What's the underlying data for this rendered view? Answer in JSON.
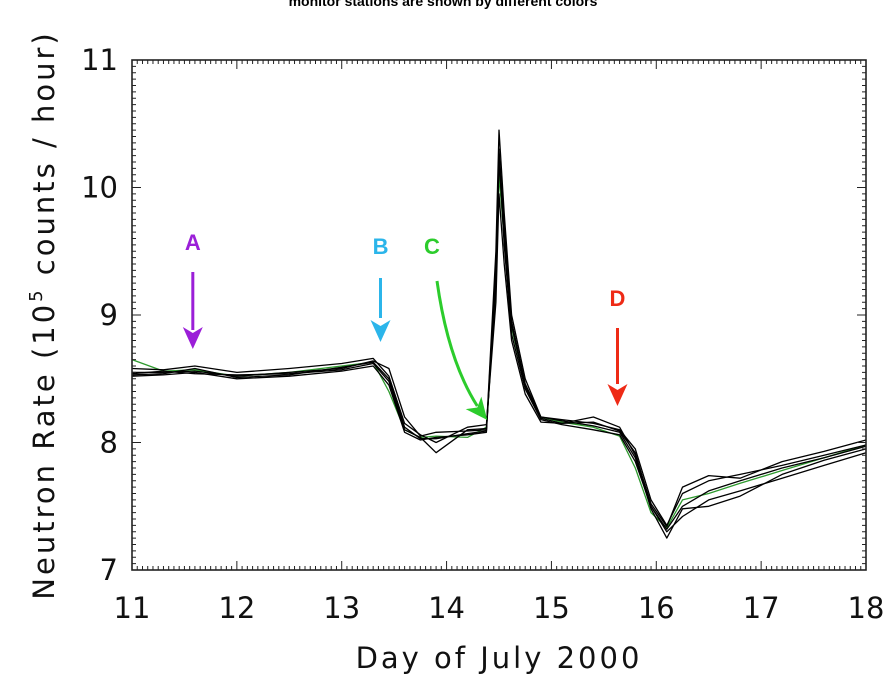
{
  "title": "monitor stations are shown by different colors",
  "chart_data": {
    "type": "line",
    "xlabel": "Day of July 2000",
    "ylabel_prefix": "Neutron Rate (10",
    "ylabel_exp": "5",
    "ylabel_suffix": " counts / hour)",
    "xlim": [
      11,
      18
    ],
    "ylim": [
      7,
      11
    ],
    "xticks": [
      11,
      12,
      13,
      14,
      15,
      16,
      17,
      18
    ],
    "yticks": [
      7,
      8,
      9,
      10,
      11
    ],
    "xtick_labels": [
      "11",
      "12",
      "13",
      "14",
      "15",
      "16",
      "17",
      "18"
    ],
    "ytick_labels": [
      "7",
      "8",
      "9",
      "10",
      "11"
    ],
    "annotations": [
      {
        "label": "A",
        "color": "#9b1fd8",
        "x": 11.58,
        "y_tail": 8.8,
        "y_head": 8.76
      },
      {
        "label": "B",
        "color": "#2bb5ea",
        "x": 13.37,
        "y_tail": 8.84,
        "y_head": 8.8
      },
      {
        "label": "C",
        "color": "#2ccc2c",
        "x": 14.35,
        "y_tail": 8.16,
        "y_head": 8.2
      },
      {
        "label": "D",
        "color": "#ee2a16",
        "x": 15.63,
        "y_tail": 8.3,
        "y_head": 8.3
      }
    ],
    "series": [
      {
        "color": "#2e9a2e",
        "x": [
          11,
          11.3,
          11.6,
          12,
          12.5,
          13,
          13.3,
          13.45,
          13.6,
          13.75,
          13.9,
          14.2,
          14.38,
          14.47,
          14.5,
          14.55,
          14.62,
          14.75,
          14.9,
          15.1,
          15.4,
          15.65,
          15.8,
          15.95,
          16.1,
          16.25,
          16.5,
          16.8,
          17.2,
          17.6,
          18
        ],
        "y": [
          8.65,
          8.56,
          8.57,
          8.52,
          8.55,
          8.6,
          8.63,
          8.4,
          8.1,
          8.04,
          8.05,
          8.04,
          8.12,
          9.2,
          10.1,
          9.6,
          8.9,
          8.45,
          8.2,
          8.16,
          8.12,
          8.05,
          7.8,
          7.45,
          7.33,
          7.55,
          7.6,
          7.68,
          7.78,
          7.88,
          7.98
        ]
      },
      {
        "color": "#000000",
        "x": [
          11,
          11.3,
          11.6,
          12,
          12.5,
          13,
          13.3,
          13.45,
          13.6,
          13.75,
          13.9,
          14.2,
          14.38,
          14.47,
          14.5,
          14.55,
          14.62,
          14.75,
          14.9,
          15.1,
          15.4,
          15.65,
          15.8,
          15.95,
          16.1,
          16.25,
          16.5,
          16.8,
          17.2,
          17.6,
          18
        ],
        "y": [
          8.55,
          8.55,
          8.56,
          8.52,
          8.55,
          8.58,
          8.64,
          8.58,
          8.2,
          8.05,
          8.08,
          8.09,
          8.1,
          9.5,
          10.45,
          9.8,
          9.0,
          8.5,
          8.2,
          8.18,
          8.15,
          8.1,
          7.95,
          7.55,
          7.35,
          7.6,
          7.7,
          7.75,
          7.82,
          7.9,
          7.98
        ]
      },
      {
        "color": "#000000",
        "x": [
          11,
          11.3,
          11.6,
          12,
          12.5,
          13,
          13.3,
          13.45,
          13.6,
          13.75,
          13.9,
          14.2,
          14.38,
          14.47,
          14.5,
          14.55,
          14.62,
          14.75,
          14.9,
          15.1,
          15.4,
          15.65,
          15.8,
          15.95,
          16.1,
          16.25,
          16.5,
          16.8,
          17.2,
          17.6,
          18
        ],
        "y": [
          8.52,
          8.53,
          8.55,
          8.5,
          8.52,
          8.56,
          8.6,
          8.45,
          8.08,
          8.02,
          8.04,
          8.06,
          8.08,
          9.3,
          10.25,
          9.55,
          8.85,
          8.42,
          8.18,
          8.14,
          8.1,
          8.06,
          7.85,
          7.5,
          7.3,
          7.42,
          7.55,
          7.62,
          7.72,
          7.82,
          7.92
        ]
      },
      {
        "color": "#000000",
        "x": [
          11,
          11.3,
          11.6,
          12,
          12.5,
          13,
          13.3,
          13.45,
          13.6,
          13.75,
          13.9,
          14.2,
          14.38,
          14.47,
          14.5,
          14.55,
          14.62,
          14.75,
          14.9,
          15.1,
          15.4,
          15.65,
          15.8,
          15.95,
          16.1,
          16.25,
          16.5,
          16.8,
          17.2,
          17.6,
          18
        ],
        "y": [
          8.58,
          8.57,
          8.6,
          8.55,
          8.58,
          8.62,
          8.66,
          8.52,
          8.15,
          8.06,
          8.0,
          8.12,
          8.14,
          9.1,
          9.95,
          9.4,
          8.8,
          8.38,
          8.16,
          8.15,
          8.2,
          8.12,
          7.9,
          7.52,
          7.34,
          7.65,
          7.74,
          7.72,
          7.85,
          7.93,
          8.02
        ]
      },
      {
        "color": "#000000",
        "x": [
          11,
          11.3,
          11.6,
          12,
          12.5,
          13,
          13.3,
          13.45,
          13.6,
          13.75,
          13.9,
          14.2,
          14.38,
          14.47,
          14.5,
          14.55,
          14.62,
          14.75,
          14.9,
          15.1,
          15.4,
          15.65,
          15.8,
          15.95,
          16.1,
          16.25,
          16.5,
          16.8,
          17.2,
          17.6,
          18
        ],
        "y": [
          8.54,
          8.56,
          8.54,
          8.53,
          8.54,
          8.57,
          8.62,
          8.48,
          8.1,
          8.04,
          7.92,
          8.1,
          8.11,
          9.25,
          10.2,
          9.65,
          8.95,
          8.46,
          8.2,
          8.17,
          8.13,
          8.08,
          7.88,
          7.48,
          7.25,
          7.48,
          7.5,
          7.58,
          7.75,
          7.86,
          7.95
        ]
      },
      {
        "color": "#000000",
        "x": [
          11,
          11.3,
          11.6,
          12,
          12.5,
          13,
          13.3,
          13.45,
          13.6,
          13.75,
          13.9,
          14.2,
          14.38,
          14.47,
          14.5,
          14.55,
          14.62,
          14.75,
          14.9,
          15.1,
          15.4,
          15.65,
          15.8,
          15.95,
          16.1,
          16.25,
          16.5,
          16.8,
          17.2,
          17.6,
          18
        ],
        "y": [
          8.53,
          8.54,
          8.58,
          8.51,
          8.53,
          8.59,
          8.63,
          8.5,
          8.12,
          8.03,
          8.03,
          8.07,
          8.09,
          9.4,
          10.3,
          9.7,
          8.92,
          8.44,
          8.19,
          8.15,
          8.16,
          8.09,
          7.92,
          7.5,
          7.32,
          7.5,
          7.62,
          7.7,
          7.8,
          7.88,
          7.97
        ]
      }
    ]
  }
}
